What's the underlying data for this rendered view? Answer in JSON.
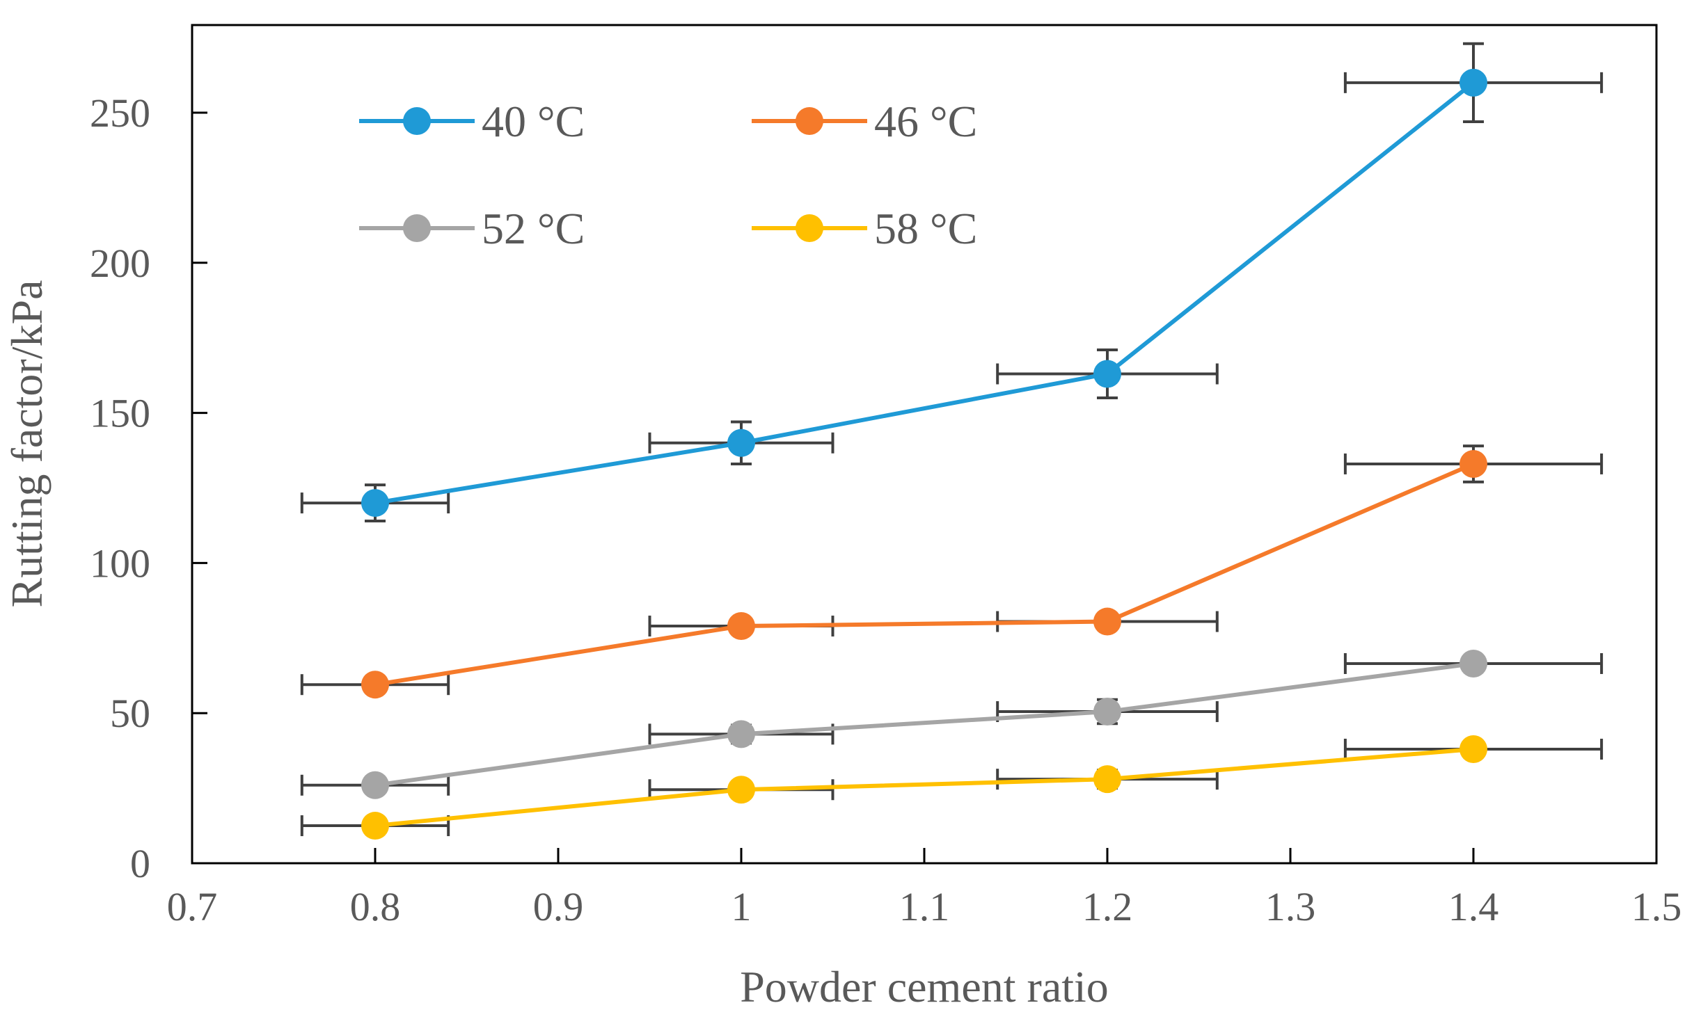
{
  "chart_data": {
    "type": "line",
    "title": "",
    "xlabel": "Powder cement ratio",
    "ylabel": "Rutting factor/kPa",
    "xlim": [
      0.7,
      1.5
    ],
    "ylim": [
      0,
      280
    ],
    "x_ticks": [
      "0.7",
      "0.8",
      "0.9",
      "1",
      "1.1",
      "1.2",
      "1.3",
      "1.4",
      "1.5"
    ],
    "y_ticks": [
      "0",
      "50",
      "100",
      "150",
      "200",
      "250"
    ],
    "x_tick_values": [
      0.7,
      0.8,
      0.9,
      1.0,
      1.1,
      1.2,
      1.3,
      1.4,
      1.5
    ],
    "y_tick_values": [
      0,
      50,
      100,
      150,
      200,
      250
    ],
    "grid": false,
    "legend_position": "top-left",
    "x": [
      0.8,
      1.0,
      1.2,
      1.4
    ],
    "series": [
      {
        "name": "40 °C",
        "color": "#1f9ad6",
        "values": [
          120,
          140,
          163,
          260
        ],
        "y_err": [
          6,
          7,
          8,
          13
        ],
        "x_err": [
          0.04,
          0.05,
          0.06,
          0.07
        ]
      },
      {
        "name": "46 °C",
        "color": "#f57a2a",
        "values": [
          59.5,
          79,
          80.5,
          133
        ],
        "y_err": [
          2,
          2,
          2,
          6
        ],
        "x_err": [
          0.04,
          0.05,
          0.06,
          0.07
        ]
      },
      {
        "name": "52 °C",
        "color": "#a5a5a5",
        "values": [
          26,
          43,
          50.5,
          66.5
        ],
        "y_err": [
          2,
          3,
          4,
          2
        ],
        "x_err": [
          0.04,
          0.05,
          0.06,
          0.07
        ]
      },
      {
        "name": "58 °C",
        "color": "#ffc000",
        "values": [
          12.5,
          24.5,
          28,
          38
        ],
        "y_err": [
          2,
          2,
          3,
          2
        ],
        "x_err": [
          0.04,
          0.05,
          0.06,
          0.07
        ]
      }
    ]
  }
}
